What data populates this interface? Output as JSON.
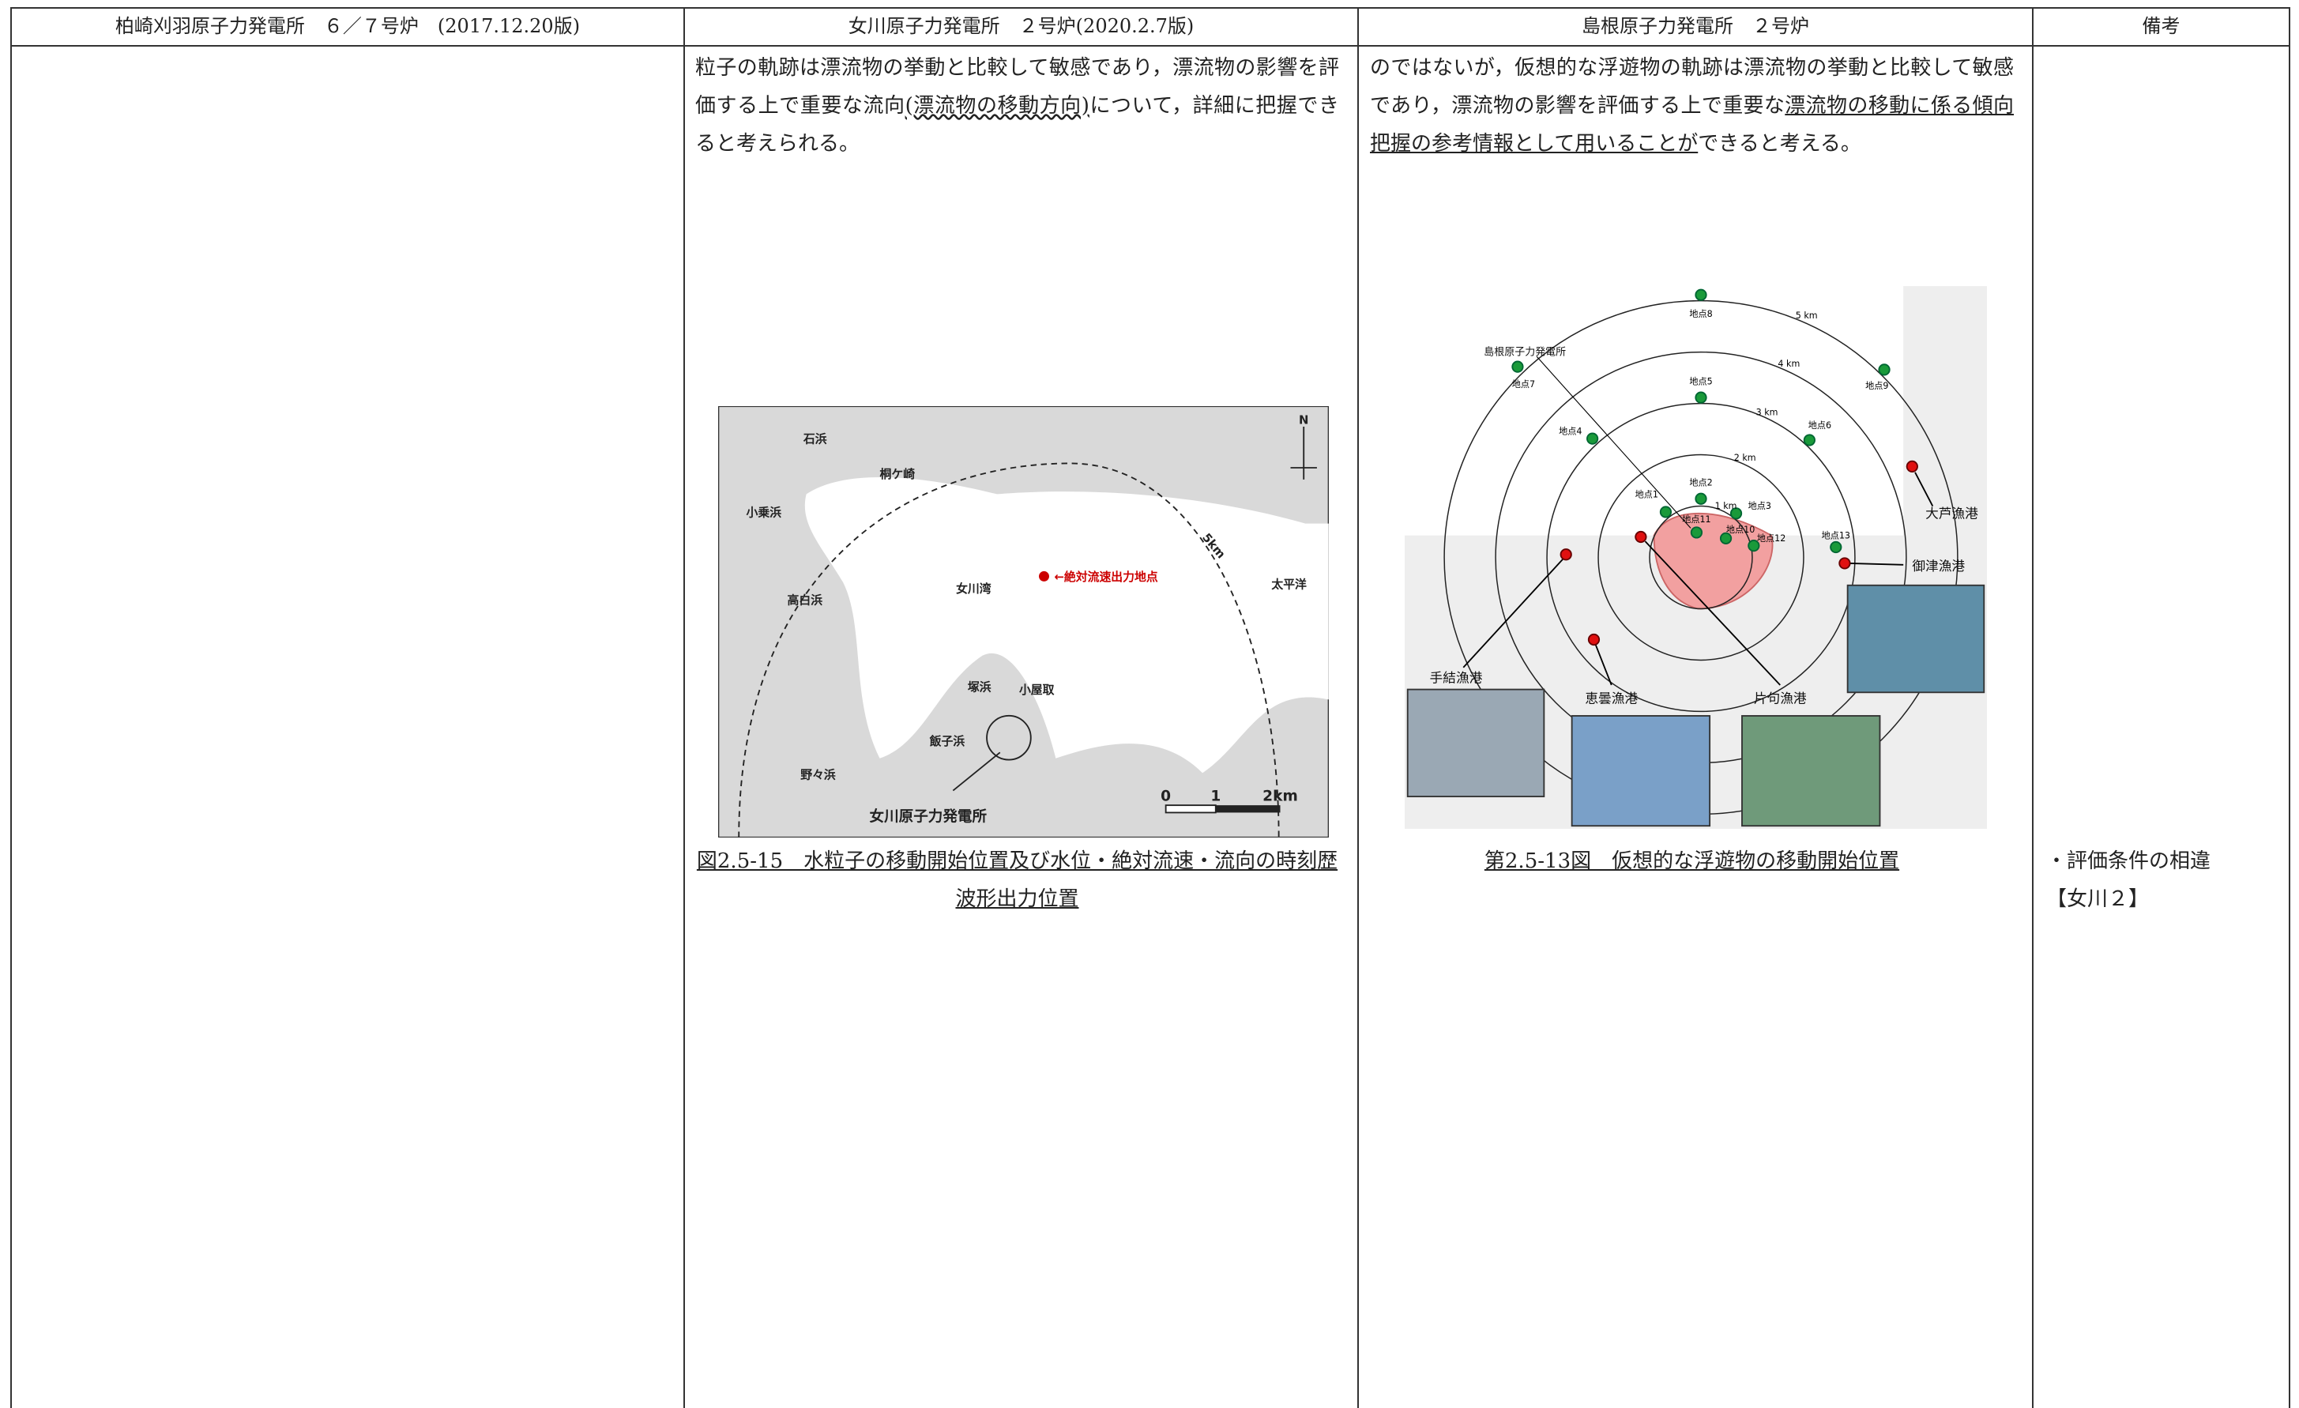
{
  "header": [
    "柏崎刈羽原子力発電所　６／７号炉　(2017.12.20版)",
    "女川原子力発電所　２号炉(2020.2.7版)",
    "島根原子力発電所　２号炉",
    "備考"
  ],
  "onagawa": {
    "text": [
      "粒子の軌跡は漂流物の挙動と比較して敏感であり，漂流物の影響を評価する上で重要な流向",
      "(漂流物の移動方向)",
      "について，詳細に把握できると考えられる。"
    ],
    "figure": {
      "labels": [
        "石浜",
        "桐ケ崎",
        "小乗浜",
        "5km",
        "女川湾",
        "←絶対流速出力地点",
        "太平洋",
        "高白浜",
        "塚浜",
        "小屋取",
        "飯子浜",
        "野々浜",
        "女川原子力発電所",
        "N",
        "0",
        "1",
        "2km"
      ],
      "caption": "図2.5-15　水粒子の移動開始位置及び水位・絶対流速・流向の時刻歴波形出力位置"
    }
  },
  "shimane": {
    "text": [
      "のではないが，仮想的な浮遊物の軌跡は漂流物の挙動と比較して敏感であり，漂流物の影響を評価する上で重要な",
      "漂流物の移動に係る傾向把握の参考情報として用いることが",
      "できると考える。"
    ],
    "figure": {
      "points": [
        "地点1",
        "地点2",
        "地点3",
        "地点4",
        "地点5",
        "地点6",
        "地点7",
        "地点8",
        "地点9",
        "地点10",
        "地点11",
        "地点12",
        "地点13"
      ],
      "rings": [
        "1 km",
        "2 km",
        "3 km",
        "4 km",
        "5 km"
      ],
      "places": [
        "島根原子力発電所",
        "大芦漁港",
        "御津漁港",
        "手結漁港",
        "恵曇漁港",
        "片句漁港"
      ],
      "caption": "第2.5-13図　仮想的な浮遊物の移動開始位置"
    }
  },
  "remarks": [
    "・評価条件の相違",
    "【女川２】"
  ]
}
